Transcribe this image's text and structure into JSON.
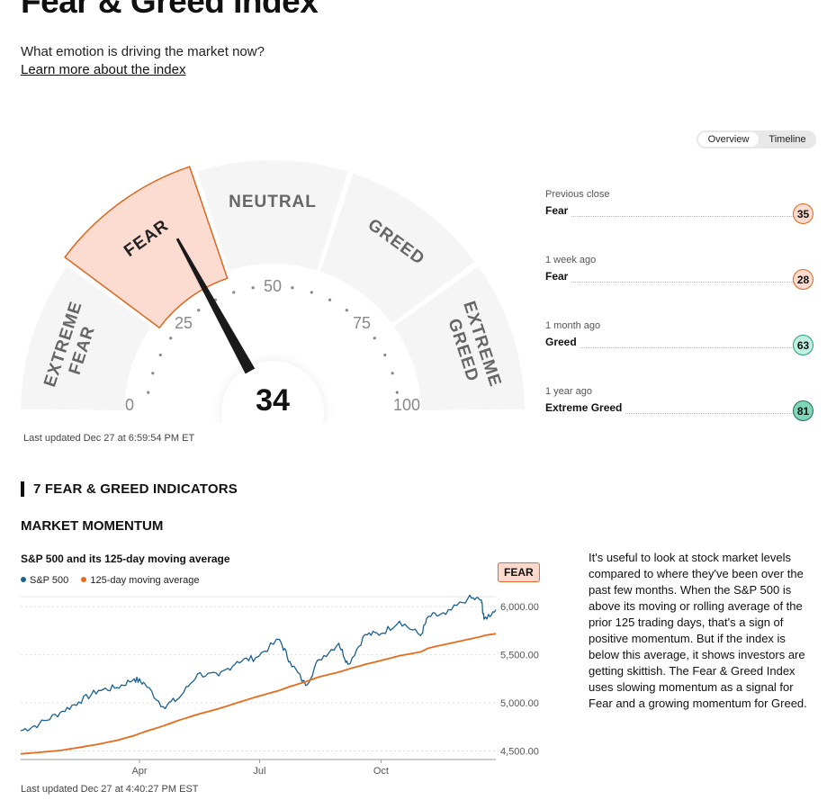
{
  "header": {
    "title": "Fear & Greed Index",
    "subtitle": "What emotion is driving the market now?",
    "learn_more": "Learn more about the index"
  },
  "gauge": {
    "value": 34,
    "value_label": "34",
    "segments": [
      "EXTREME FEAR",
      "FEAR",
      "NEUTRAL",
      "GREED",
      "EXTREME GREED"
    ],
    "active_segment": "FEAR",
    "scale_labels": [
      "0",
      "25",
      "50",
      "75",
      "100"
    ],
    "last_updated": "Last updated Dec 27 at 6:59:54 PM ET",
    "colors": {
      "inactive": "#f5f5f5",
      "active_fill": "#fcdcd0",
      "active_border": "#d9671e",
      "needle": "#1a1a1a"
    }
  },
  "view_toggle": {
    "options": [
      "Overview",
      "Timeline"
    ],
    "selected": "Overview"
  },
  "history": [
    {
      "label": "Previous close",
      "rating": "Fear",
      "value": "35",
      "color": "#fcdcd0",
      "border": "#d9671e"
    },
    {
      "label": "1 week ago",
      "rating": "Fear",
      "value": "28",
      "color": "#fcdcd0",
      "border": "#d9671e"
    },
    {
      "label": "1 month ago",
      "rating": "Greed",
      "value": "63",
      "color": "#bff0e2",
      "border": "#2a9d7f"
    },
    {
      "label": "1 year ago",
      "rating": "Extreme Greed",
      "value": "81",
      "color": "#7fd6b8",
      "border": "#1d6f57"
    }
  ],
  "indicators": {
    "heading": "7 FEAR & GREED INDICATORS",
    "section": "MARKET MOMENTUM",
    "badge": "FEAR",
    "last_updated": "Last updated Dec 27 at 4:40:27 PM EST",
    "description": "It's useful to look at stock market levels compared to where they've been over the past few months. When the S&P 500 is above its moving or rolling average of the prior 125 trading days, that's a sign of positive momentum. But if the index is below this average, it shows investors are getting skittish. The Fear & Greed Index uses slowing momentum as a signal for Fear and a growing momentum for Greed."
  },
  "chart_data": {
    "type": "line",
    "title": "S&P 500 and its 125-day moving average",
    "xlabel": "",
    "ylabel": "",
    "x_ticks": [
      "Apr",
      "Jul",
      "Oct"
    ],
    "y_ticks": [
      "4,500.00",
      "5,000.00",
      "5,500.00",
      "6,000.00"
    ],
    "ylim": [
      4420,
      6180
    ],
    "grid": true,
    "legend": "top-left",
    "x_dates": [
      "2024-01-02",
      "2024-01-16",
      "2024-02-01",
      "2024-02-15",
      "2024-03-01",
      "2024-03-15",
      "2024-03-28",
      "2024-04-05",
      "2024-04-19",
      "2024-05-01",
      "2024-05-15",
      "2024-05-31",
      "2024-06-14",
      "2024-06-28",
      "2024-07-16",
      "2024-07-24",
      "2024-08-05",
      "2024-08-15",
      "2024-08-30",
      "2024-09-06",
      "2024-09-19",
      "2024-10-01",
      "2024-10-15",
      "2024-10-31",
      "2024-11-06",
      "2024-11-19",
      "2024-12-06",
      "2024-12-16",
      "2024-12-18",
      "2024-12-27"
    ],
    "series": [
      {
        "name": "S&P 500",
        "color": "#19618f",
        "values": [
          4710,
          4780,
          4900,
          5010,
          5130,
          5160,
          5250,
          5200,
          4960,
          5050,
          5300,
          5280,
          5430,
          5470,
          5660,
          5430,
          5180,
          5450,
          5620,
          5400,
          5710,
          5720,
          5850,
          5700,
          5900,
          5920,
          6090,
          6070,
          5870,
          5970
        ]
      },
      {
        "name": "125-day moving average",
        "color": "#e76a1c",
        "values": [
          4470,
          4485,
          4505,
          4535,
          4570,
          4610,
          4660,
          4700,
          4760,
          4820,
          4880,
          4940,
          5000,
          5060,
          5130,
          5170,
          5220,
          5270,
          5320,
          5350,
          5400,
          5440,
          5490,
          5530,
          5570,
          5610,
          5660,
          5690,
          5700,
          5720
        ]
      }
    ]
  }
}
